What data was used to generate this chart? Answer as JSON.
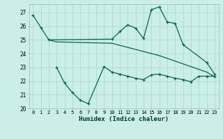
{
  "xlabel": "Humidex (Indice chaleur)",
  "bg_color": "#cceee8",
  "grid_color": "#aaddcc",
  "line_color": "#006655",
  "xlim": [
    -0.5,
    23.5
  ],
  "ylim": [
    20,
    27.6
  ],
  "yticks": [
    20,
    21,
    22,
    23,
    24,
    25,
    26,
    27
  ],
  "xticks": [
    0,
    1,
    2,
    3,
    4,
    5,
    6,
    7,
    8,
    9,
    10,
    11,
    12,
    13,
    14,
    15,
    16,
    17,
    18,
    19,
    20,
    21,
    22,
    23
  ],
  "line1_x": [
    0,
    1,
    2,
    10,
    11,
    12,
    13,
    14,
    15,
    16,
    17,
    18,
    19,
    22,
    23
  ],
  "line1_y": [
    26.8,
    25.9,
    25.0,
    25.05,
    25.6,
    26.1,
    25.85,
    25.1,
    27.2,
    27.4,
    26.3,
    26.2,
    24.65,
    23.35,
    22.5
  ],
  "line2_x": [
    2,
    3,
    10,
    11,
    12,
    13,
    14,
    15,
    16,
    17,
    18,
    19,
    20,
    21,
    22,
    23
  ],
  "line2_y": [
    25.0,
    24.85,
    24.75,
    24.6,
    24.45,
    24.3,
    24.15,
    24.0,
    23.85,
    23.65,
    23.45,
    23.25,
    23.05,
    22.85,
    22.65,
    22.3
  ],
  "line3_x": [
    3,
    4,
    5,
    6,
    7,
    9,
    10,
    11,
    12,
    13,
    14,
    15,
    16,
    17,
    18,
    19,
    20,
    21,
    22,
    23
  ],
  "line3_y": [
    23.0,
    21.85,
    21.15,
    20.6,
    20.35,
    23.05,
    22.65,
    22.5,
    22.35,
    22.2,
    22.1,
    22.45,
    22.5,
    22.35,
    22.2,
    22.1,
    21.95,
    22.35,
    22.35,
    22.35
  ]
}
